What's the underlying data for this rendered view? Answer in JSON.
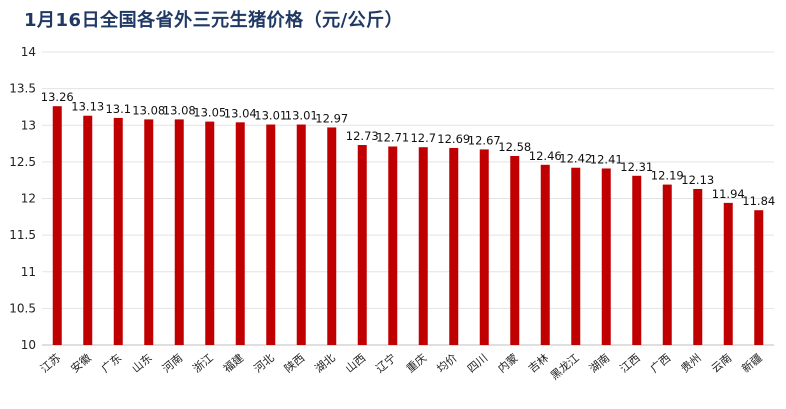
{
  "chart_data": {
    "type": "bar",
    "title": "1月16日全国各省外三元生猪价格（元/公斤）",
    "xlabel": "",
    "ylabel": "",
    "ylim": [
      10,
      14
    ],
    "yticks": [
      10,
      10.5,
      11,
      11.5,
      12,
      12.5,
      13,
      13.5,
      14
    ],
    "grid": true,
    "bar_color": "#c00000",
    "categories": [
      "江苏",
      "安徽",
      "广东",
      "山东",
      "河南",
      "浙江",
      "福建",
      "河北",
      "陕西",
      "湖北",
      "山西",
      "辽宁",
      "重庆",
      "均价",
      "四川",
      "内蒙",
      "吉林",
      "黑龙江",
      "湖南",
      "江西",
      "广西",
      "贵州",
      "云南",
      "新疆"
    ],
    "values": [
      13.26,
      13.13,
      13.1,
      13.08,
      13.08,
      13.05,
      13.04,
      13.01,
      13.01,
      12.97,
      12.73,
      12.71,
      12.7,
      12.69,
      12.67,
      12.58,
      12.46,
      12.42,
      12.41,
      12.31,
      12.19,
      12.13,
      11.94,
      11.84
    ],
    "value_labels": [
      "13.26",
      "13.13",
      "13.1",
      "13.08",
      "13.08",
      "13.05",
      "13.04",
      "13.01",
      "13.01",
      "12.97",
      "12.73",
      "12.71",
      "12.7",
      "12.69",
      "12.67",
      "12.58",
      "12.46",
      "12.42",
      "12.41",
      "12.31",
      "12.19",
      "12.13",
      "11.94",
      "11.84"
    ]
  }
}
